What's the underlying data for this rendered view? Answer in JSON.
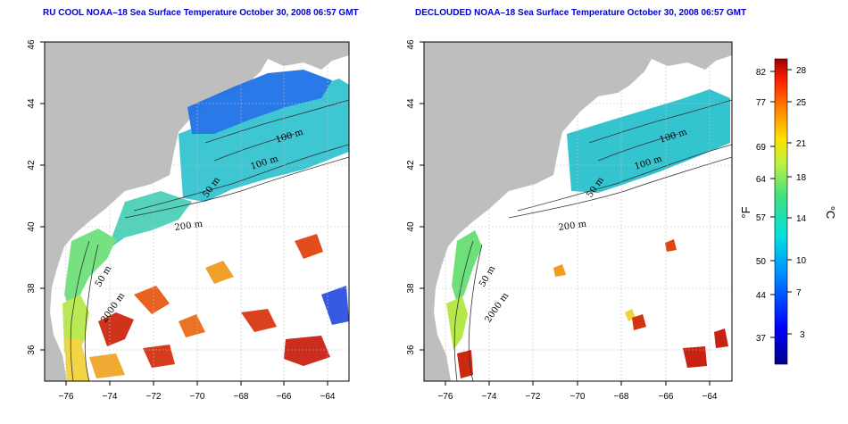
{
  "panels": [
    {
      "title": "RU COOL NOAA–18 Sea Surface Temperature October 30, 2008 06:57 GMT",
      "contour_labels": [
        "100 m",
        "100 m",
        "50 m",
        "200 m",
        "50 m",
        "2000 m"
      ]
    },
    {
      "title": "DECLOUDED NOAA–18 Sea Surface Temperature October 30, 2008 06:57 GMT",
      "contour_labels": [
        "100 m",
        "100 m",
        "50 m",
        "200 m",
        "50 m",
        "2000 m"
      ]
    }
  ],
  "axes": {
    "x_ticks": [
      "−76",
      "−74",
      "−72",
      "−70",
      "−68",
      "−66",
      "−64"
    ],
    "y_ticks": [
      "36",
      "38",
      "40",
      "42",
      "44",
      "46"
    ],
    "x_range": [
      -77,
      -63
    ],
    "y_range": [
      35,
      46
    ]
  },
  "colorbar": {
    "unit_left": "°F",
    "unit_right": "°C",
    "f_ticks": [
      "82",
      "77",
      "69",
      "64",
      "57",
      "50",
      "44",
      "37"
    ],
    "c_ticks": [
      "28",
      "25",
      "21",
      "18",
      "14",
      "10",
      "7",
      "3"
    ],
    "range_c": [
      0,
      30
    ]
  },
  "colors": {
    "land": "#bebebe",
    "cloud": "#ffffff",
    "title": "#0000cc",
    "grid": "#bfbfbf"
  }
}
